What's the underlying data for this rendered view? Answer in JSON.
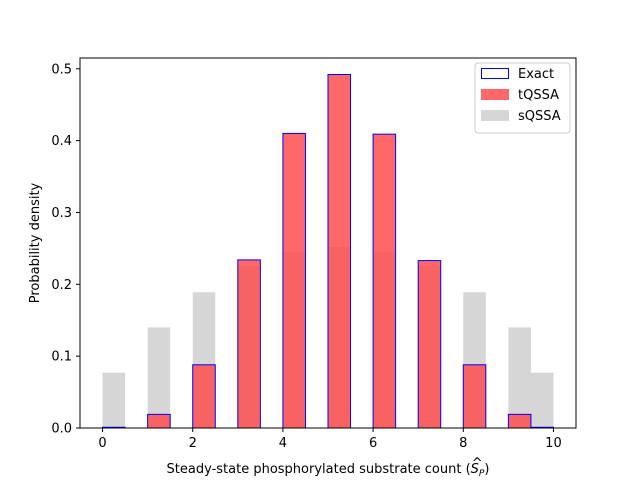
{
  "chart_data": {
    "type": "bar",
    "xlabel": "Steady-state phosphorylated substrate count (",
    "xlabel_symbol": "S",
    "xlabel_subscript": "P",
    "xlabel_close": ")",
    "ylabel": "Probability density",
    "xlim": [
      -0.5,
      10.5
    ],
    "ylim": [
      0,
      0.515
    ],
    "xticks": [
      0,
      2,
      4,
      6,
      8,
      10
    ],
    "yticks": [
      0.0,
      0.1,
      0.2,
      0.3,
      0.4,
      0.5
    ],
    "legend_position": "upper-right",
    "bin_left_edges": [
      0,
      1,
      2,
      3,
      4,
      5,
      6,
      7,
      8,
      9,
      9.5
    ],
    "bin_width": 0.5,
    "series": [
      {
        "name": "sQSSA",
        "style": "filled",
        "color": "#d6d6d6",
        "values": [
          0.077,
          0.14,
          0.189,
          0.226,
          0.245,
          0.252,
          0.245,
          0.226,
          0.189,
          0.14,
          0.077
        ]
      },
      {
        "name": "tQSSA",
        "style": "filled",
        "color": "#ff4d4d",
        "opacity": 0.85,
        "values": [
          0.001,
          0.019,
          0.088,
          0.234,
          0.41,
          0.492,
          0.409,
          0.233,
          0.088,
          0.019,
          0.001
        ]
      },
      {
        "name": "Exact",
        "style": "step",
        "color": "#0000ff",
        "values": [
          0.001,
          0.019,
          0.088,
          0.234,
          0.41,
          0.492,
          0.409,
          0.233,
          0.088,
          0.019,
          0.001
        ]
      }
    ]
  }
}
